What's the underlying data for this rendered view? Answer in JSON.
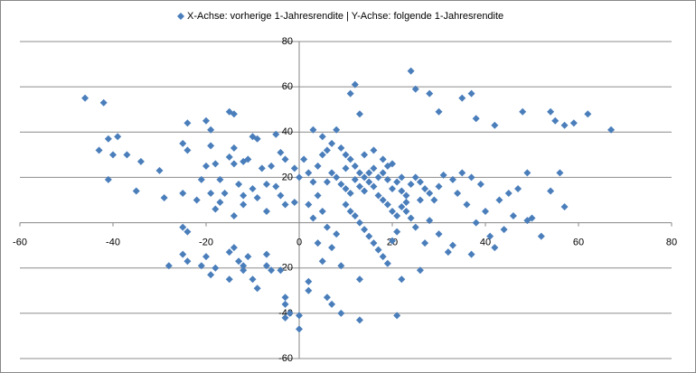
{
  "chart_data": {
    "type": "scatter",
    "xlim": [
      -60,
      80
    ],
    "ylim": [
      -60,
      80
    ],
    "xticks": [
      -60,
      -40,
      -20,
      0,
      20,
      40,
      60,
      80
    ],
    "yticks": [
      -60,
      -40,
      -20,
      20,
      40,
      60,
      80
    ],
    "grid": true,
    "legend": "top",
    "x": [
      -46,
      -42,
      -41,
      -43,
      -39,
      -40,
      -37,
      -41,
      -34,
      -35,
      -30,
      -29,
      -25,
      -24,
      -25,
      -24,
      -20,
      -19,
      -19,
      -20,
      -18,
      -21,
      -19,
      -15,
      -14,
      -14,
      -15,
      -14,
      -12,
      -11,
      -10,
      -9,
      -8,
      -6,
      -5,
      -4,
      -3,
      -5,
      -7,
      -10,
      -13,
      -16,
      -17,
      -22,
      -17,
      -12,
      -12,
      -18,
      -14,
      -9,
      -7,
      -4,
      -3,
      -1,
      -25,
      -24,
      -28,
      -25,
      -24,
      -20,
      -21,
      -18,
      -19,
      -15,
      -14,
      -13,
      -12,
      -11,
      -15,
      -12,
      -10,
      -9,
      -7,
      -6,
      -7,
      -4,
      -3,
      -3,
      -2,
      -3,
      0,
      0,
      2,
      2,
      5,
      4,
      7,
      1,
      2,
      3,
      0,
      -1,
      4,
      5,
      6,
      7,
      8,
      3,
      5,
      9,
      10,
      11,
      12,
      13,
      14,
      15,
      16,
      17,
      18,
      19,
      20,
      21,
      22,
      23,
      24,
      25,
      26,
      27,
      28,
      29,
      30,
      8,
      9,
      10,
      11,
      12,
      13,
      14,
      15,
      16,
      17,
      18,
      19,
      20,
      21,
      22,
      23,
      24,
      10,
      11,
      12,
      13,
      14,
      15,
      16,
      17,
      18,
      19,
      20,
      21,
      22,
      21,
      13,
      9,
      7,
      6,
      9,
      13,
      12,
      11,
      13,
      24,
      25,
      28,
      30,
      35,
      37,
      38,
      42,
      48,
      54,
      55,
      57,
      59,
      62,
      67,
      56,
      49,
      47,
      45,
      43,
      40,
      39,
      37,
      35,
      33,
      31,
      34,
      36,
      38,
      41,
      42,
      37,
      33,
      30,
      28,
      26,
      25,
      46,
      49,
      50,
      57,
      54,
      52,
      44,
      32,
      27,
      10,
      7,
      6,
      4,
      2,
      3,
      5,
      6,
      8,
      14,
      18,
      16,
      20,
      22,
      23,
      26,
      19
    ],
    "series": [
      {
        "name": "X-Achse: vorherige 1-Jahresrendite | Y-Achse: folgende 1-Jahresrendite",
        "color": "#4a7ebb",
        "values": [
          55,
          53,
          37,
          32,
          38,
          30,
          30,
          19,
          27,
          14,
          23,
          11,
          13,
          44,
          35,
          32,
          45,
          41,
          34,
          25,
          26,
          19,
          13,
          49,
          48,
          33,
          29,
          26,
          27,
          28,
          38,
          37,
          24,
          25,
          39,
          31,
          28,
          16,
          17,
          15,
          17,
          13,
          19,
          10,
          9,
          12,
          8,
          6,
          3,
          11,
          5,
          12,
          8,
          9,
          -2,
          -4,
          -19,
          -14,
          -17,
          -15,
          -19,
          -20,
          -23,
          -13,
          -11,
          -17,
          -19,
          -15,
          -25,
          -21,
          -25,
          -29,
          -19,
          -21,
          -14,
          -21,
          -33,
          -36,
          -40,
          -42,
          -41,
          -47,
          -30,
          -26,
          -17,
          -9,
          -11,
          28,
          22,
          18,
          20,
          24,
          25,
          30,
          32,
          35,
          41,
          41,
          38,
          33,
          30,
          28,
          25,
          22,
          20,
          18,
          16,
          20,
          22,
          19,
          15,
          18,
          14,
          12,
          17,
          20,
          18,
          15,
          13,
          10,
          16,
          20,
          17,
          15,
          13,
          19,
          16,
          14,
          22,
          24,
          12,
          10,
          8,
          5,
          3,
          7,
          5,
          2,
          8,
          5,
          3,
          0,
          -3,
          -6,
          -9,
          -12,
          -15,
          -18,
          -8,
          -4,
          -25,
          -41,
          -43,
          -40,
          -36,
          -33,
          -19,
          -25,
          61,
          57,
          48,
          67,
          59,
          57,
          49,
          55,
          57,
          46,
          43,
          49,
          49,
          45,
          43,
          44,
          48,
          41,
          22,
          22,
          15,
          13,
          10,
          5,
          17,
          20,
          22,
          19,
          21,
          13,
          8,
          0,
          -6,
          -11,
          -14,
          -10,
          -5,
          1,
          -21,
          -2,
          3,
          1,
          2,
          7,
          14,
          -6,
          -3,
          -13,
          -9,
          24,
          22,
          18,
          12,
          8,
          2,
          5,
          -2,
          -5,
          30,
          28,
          32,
          26,
          20,
          9,
          10,
          25
        ]
      }
    ]
  }
}
